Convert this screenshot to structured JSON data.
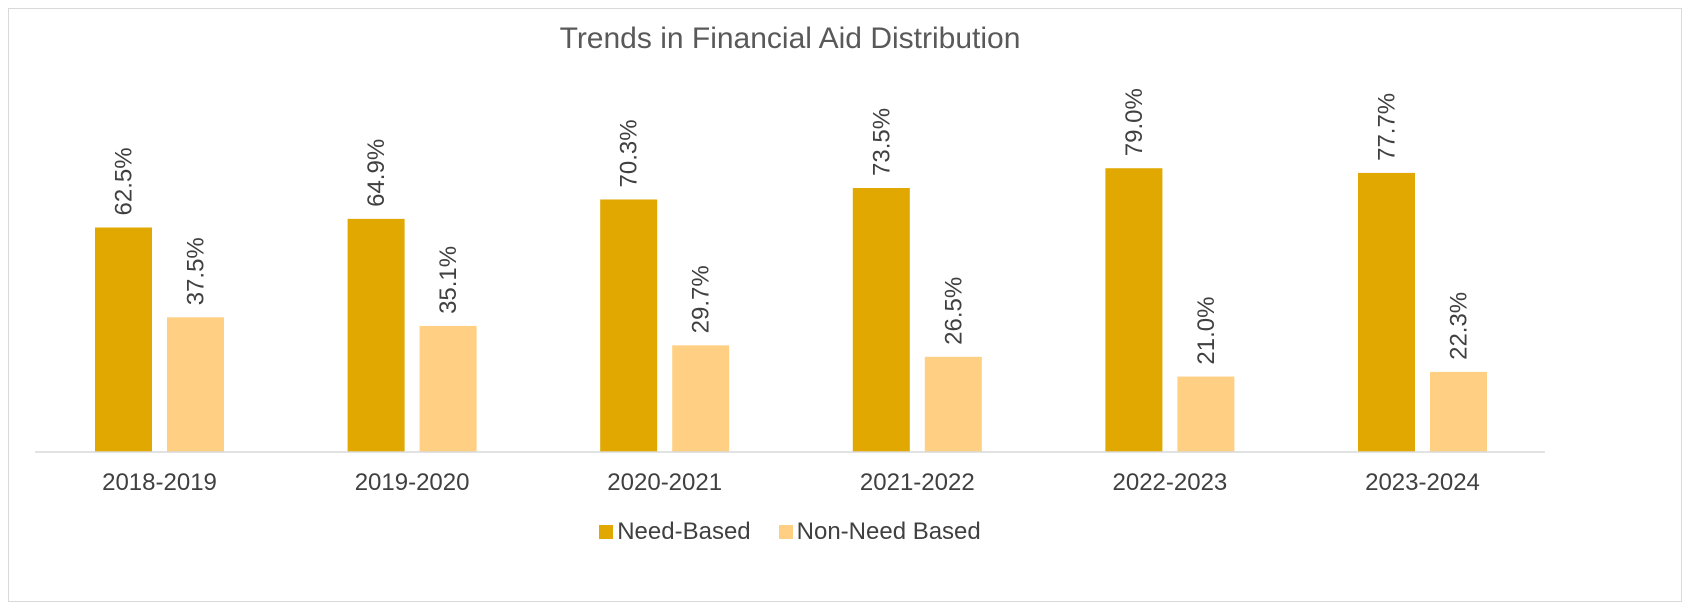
{
  "chart_data": {
    "type": "bar",
    "title": "Trends in Financial Aid Distribution",
    "categories": [
      "2018-2019",
      "2019-2020",
      "2020-2021",
      "2021-2022",
      "2022-2023",
      "2023-2024"
    ],
    "series": [
      {
        "name": "Need-Based",
        "color": "#e0a800",
        "values": [
          62.5,
          64.9,
          70.3,
          73.5,
          79.0,
          77.7
        ],
        "labels": [
          "62.5%",
          "64.9%",
          "70.3%",
          "73.5%",
          "79.0%",
          "77.7%"
        ]
      },
      {
        "name": "Non-Need Based",
        "color": "#ffd084",
        "values": [
          37.5,
          35.1,
          29.7,
          26.5,
          21.0,
          22.3
        ],
        "labels": [
          "37.5%",
          "35.1%",
          "29.7%",
          "26.5%",
          "21.0%",
          "22.3%"
        ]
      }
    ],
    "ylim": [
      0,
      100
    ],
    "grid": false,
    "legend_position": "bottom",
    "data_label_orientation": "vertical"
  }
}
